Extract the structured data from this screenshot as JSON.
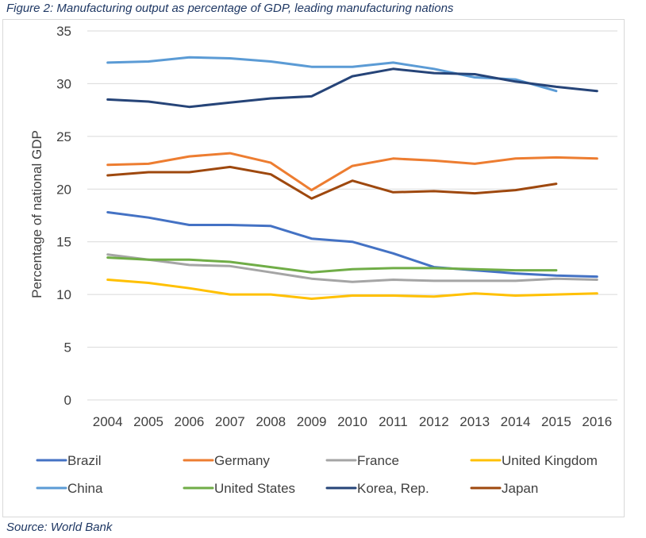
{
  "figure_title": "Figure 2: Manufacturing output as percentage of GDP, leading manufacturing nations",
  "source": "Source: World Bank",
  "chart_data": {
    "type": "line",
    "title": "Figure 2: Manufacturing output as percentage of GDP, leading manufacturing nations",
    "xlabel": "",
    "ylabel": "Percentage of national GDP",
    "ylim": [
      0,
      35
    ],
    "yticks": [
      0,
      5,
      10,
      15,
      20,
      25,
      30,
      35
    ],
    "grid": true,
    "legend_position": "bottom",
    "categories": [
      "2004",
      "2005",
      "2006",
      "2007",
      "2008",
      "2009",
      "2010",
      "2011",
      "2012",
      "2013",
      "2014",
      "2015",
      "2016"
    ],
    "series": [
      {
        "name": "Brazil",
        "color": "#4472c4",
        "values": [
          17.8,
          17.3,
          16.6,
          16.6,
          16.5,
          15.3,
          15.0,
          13.9,
          12.6,
          12.3,
          12.0,
          11.8,
          11.7
        ]
      },
      {
        "name": "Germany",
        "color": "#ed7d31",
        "values": [
          22.3,
          22.4,
          23.1,
          23.4,
          22.5,
          19.9,
          22.2,
          22.9,
          22.7,
          22.4,
          22.9,
          23.0,
          22.9
        ]
      },
      {
        "name": "France",
        "color": "#a5a5a5",
        "values": [
          13.8,
          13.3,
          12.8,
          12.7,
          12.1,
          11.5,
          11.2,
          11.4,
          11.3,
          11.3,
          11.3,
          11.5,
          11.4
        ]
      },
      {
        "name": "United Kingdom",
        "color": "#ffc000",
        "values": [
          11.4,
          11.1,
          10.6,
          10.0,
          10.0,
          9.6,
          9.9,
          9.9,
          9.8,
          10.1,
          9.9,
          10.0,
          10.1
        ]
      },
      {
        "name": "China",
        "color": "#5b9bd5",
        "values": [
          32.0,
          32.1,
          32.5,
          32.4,
          32.1,
          31.6,
          31.6,
          32.0,
          31.4,
          30.6,
          30.4,
          29.3,
          null
        ]
      },
      {
        "name": "United States",
        "color": "#70ad47",
        "values": [
          13.5,
          13.3,
          13.3,
          13.1,
          12.6,
          12.1,
          12.4,
          12.5,
          12.5,
          12.4,
          12.3,
          12.3,
          null
        ]
      },
      {
        "name": "Korea, Rep.",
        "color": "#264478",
        "values": [
          28.5,
          28.3,
          27.8,
          28.2,
          28.6,
          28.8,
          30.7,
          31.4,
          31.0,
          30.9,
          30.2,
          29.7,
          29.3
        ]
      },
      {
        "name": "Japan",
        "color": "#9e480e",
        "values": [
          21.3,
          21.6,
          21.6,
          22.1,
          21.4,
          19.1,
          20.8,
          19.7,
          19.8,
          19.6,
          19.9,
          20.5,
          null
        ]
      }
    ]
  }
}
